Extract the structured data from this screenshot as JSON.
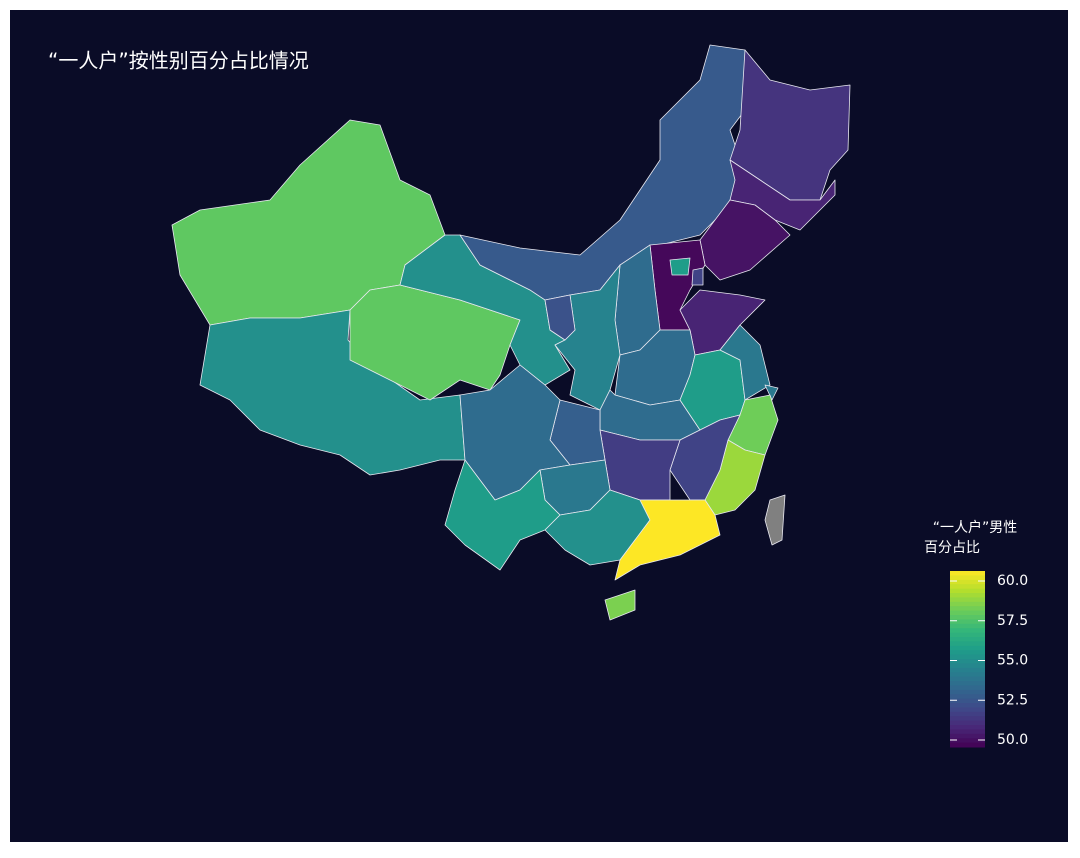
{
  "chart_data": {
    "type": "choropleth",
    "title": "“一人户”按性别百分占比情况",
    "legend_title": [
      "“一人户”男性",
      "百分占比"
    ],
    "colormap": "viridis",
    "missing_color": "#808080",
    "background": "#0a0c27",
    "clim": [
      50,
      60
    ],
    "cticks": [
      {
        "value": 50,
        "label": "50.0"
      },
      52.5,
      {
        "value": 55,
        "label": "55.0"
      },
      57.5,
      {
        "value": 60,
        "label": "60.0"
      }
    ],
    "values": [
      57.5,
      55,
      57.5,
      55,
      52.8,
      51.5,
      51,
      50.5,
      50.2,
      55.5,
      52,
      51,
      53.5,
      54.5,
      52.5,
      53.5,
      53.5,
      55.5,
      54,
      54,
      57.8,
      58.5,
      52,
      51.8,
      53,
      53.5,
      54,
      55.5,
      55,
      60.2,
      58,
      null
    ]
  }
}
